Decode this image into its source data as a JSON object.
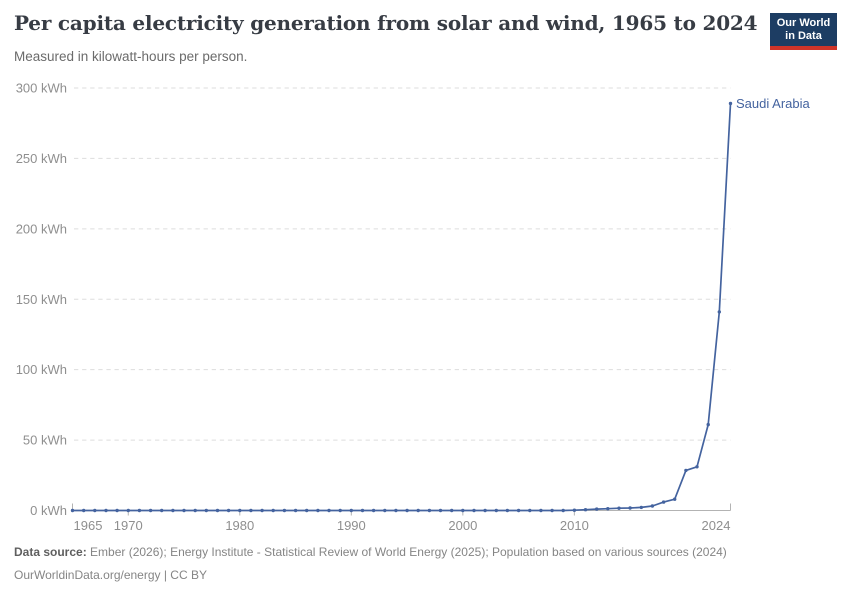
{
  "header": {
    "title": "Per capita electricity generation from solar and wind, 1965 to 2024",
    "subtitle": "Measured in kilowatt-hours per person.",
    "logo": {
      "line1": "Our World",
      "line2": "in Data",
      "bg_color": "#1d3d63",
      "accent_color": "#cf3429",
      "text_color": "#ffffff"
    }
  },
  "chart_data": {
    "type": "line",
    "title": "Per capita electricity generation from solar and wind, 1965 to 2024",
    "subtitle": "Measured in kilowatt-hours per person.",
    "xlabel": "",
    "ylabel": "",
    "unit": "kWh",
    "xlim": [
      1965,
      2024
    ],
    "ylim": [
      0,
      300
    ],
    "x_ticks": [
      1965,
      1970,
      1980,
      1990,
      2000,
      2010,
      2024
    ],
    "y_ticks": [
      0,
      50,
      100,
      150,
      200,
      250,
      300
    ],
    "grid": "horizontal-dashed",
    "legend_position": "end-of-line-label",
    "colors": {
      "series_blue": "#44639f",
      "gridline": "#dddddd",
      "axis": "#b3b3b3",
      "tick_text": "#8f8f8f"
    },
    "series": [
      {
        "name": "Saudi Arabia",
        "color": "#44639f",
        "start_year": 1965,
        "values": [
          0,
          0,
          0,
          0,
          0,
          0,
          0,
          0,
          0,
          0,
          0,
          0,
          0,
          0,
          0,
          0,
          0,
          0,
          0,
          0,
          0,
          0,
          0,
          0,
          0,
          0,
          0,
          0,
          0,
          0,
          0,
          0,
          0,
          0,
          0,
          0,
          0,
          0,
          0,
          0,
          0,
          0,
          0,
          0,
          0,
          0.2,
          0.6,
          1.0,
          1.3,
          1.6,
          1.8,
          2.2,
          3.2,
          6,
          8,
          28.5,
          31,
          61,
          141,
          289
        ]
      }
    ]
  },
  "footer": {
    "datasource_label": "Data source:",
    "datasource_text": " Ember (2026); Energy Institute - Statistical Review of World Energy (2025); Population based on various sources (2024)",
    "link_line": "OurWorldinData.org/energy | CC BY"
  }
}
